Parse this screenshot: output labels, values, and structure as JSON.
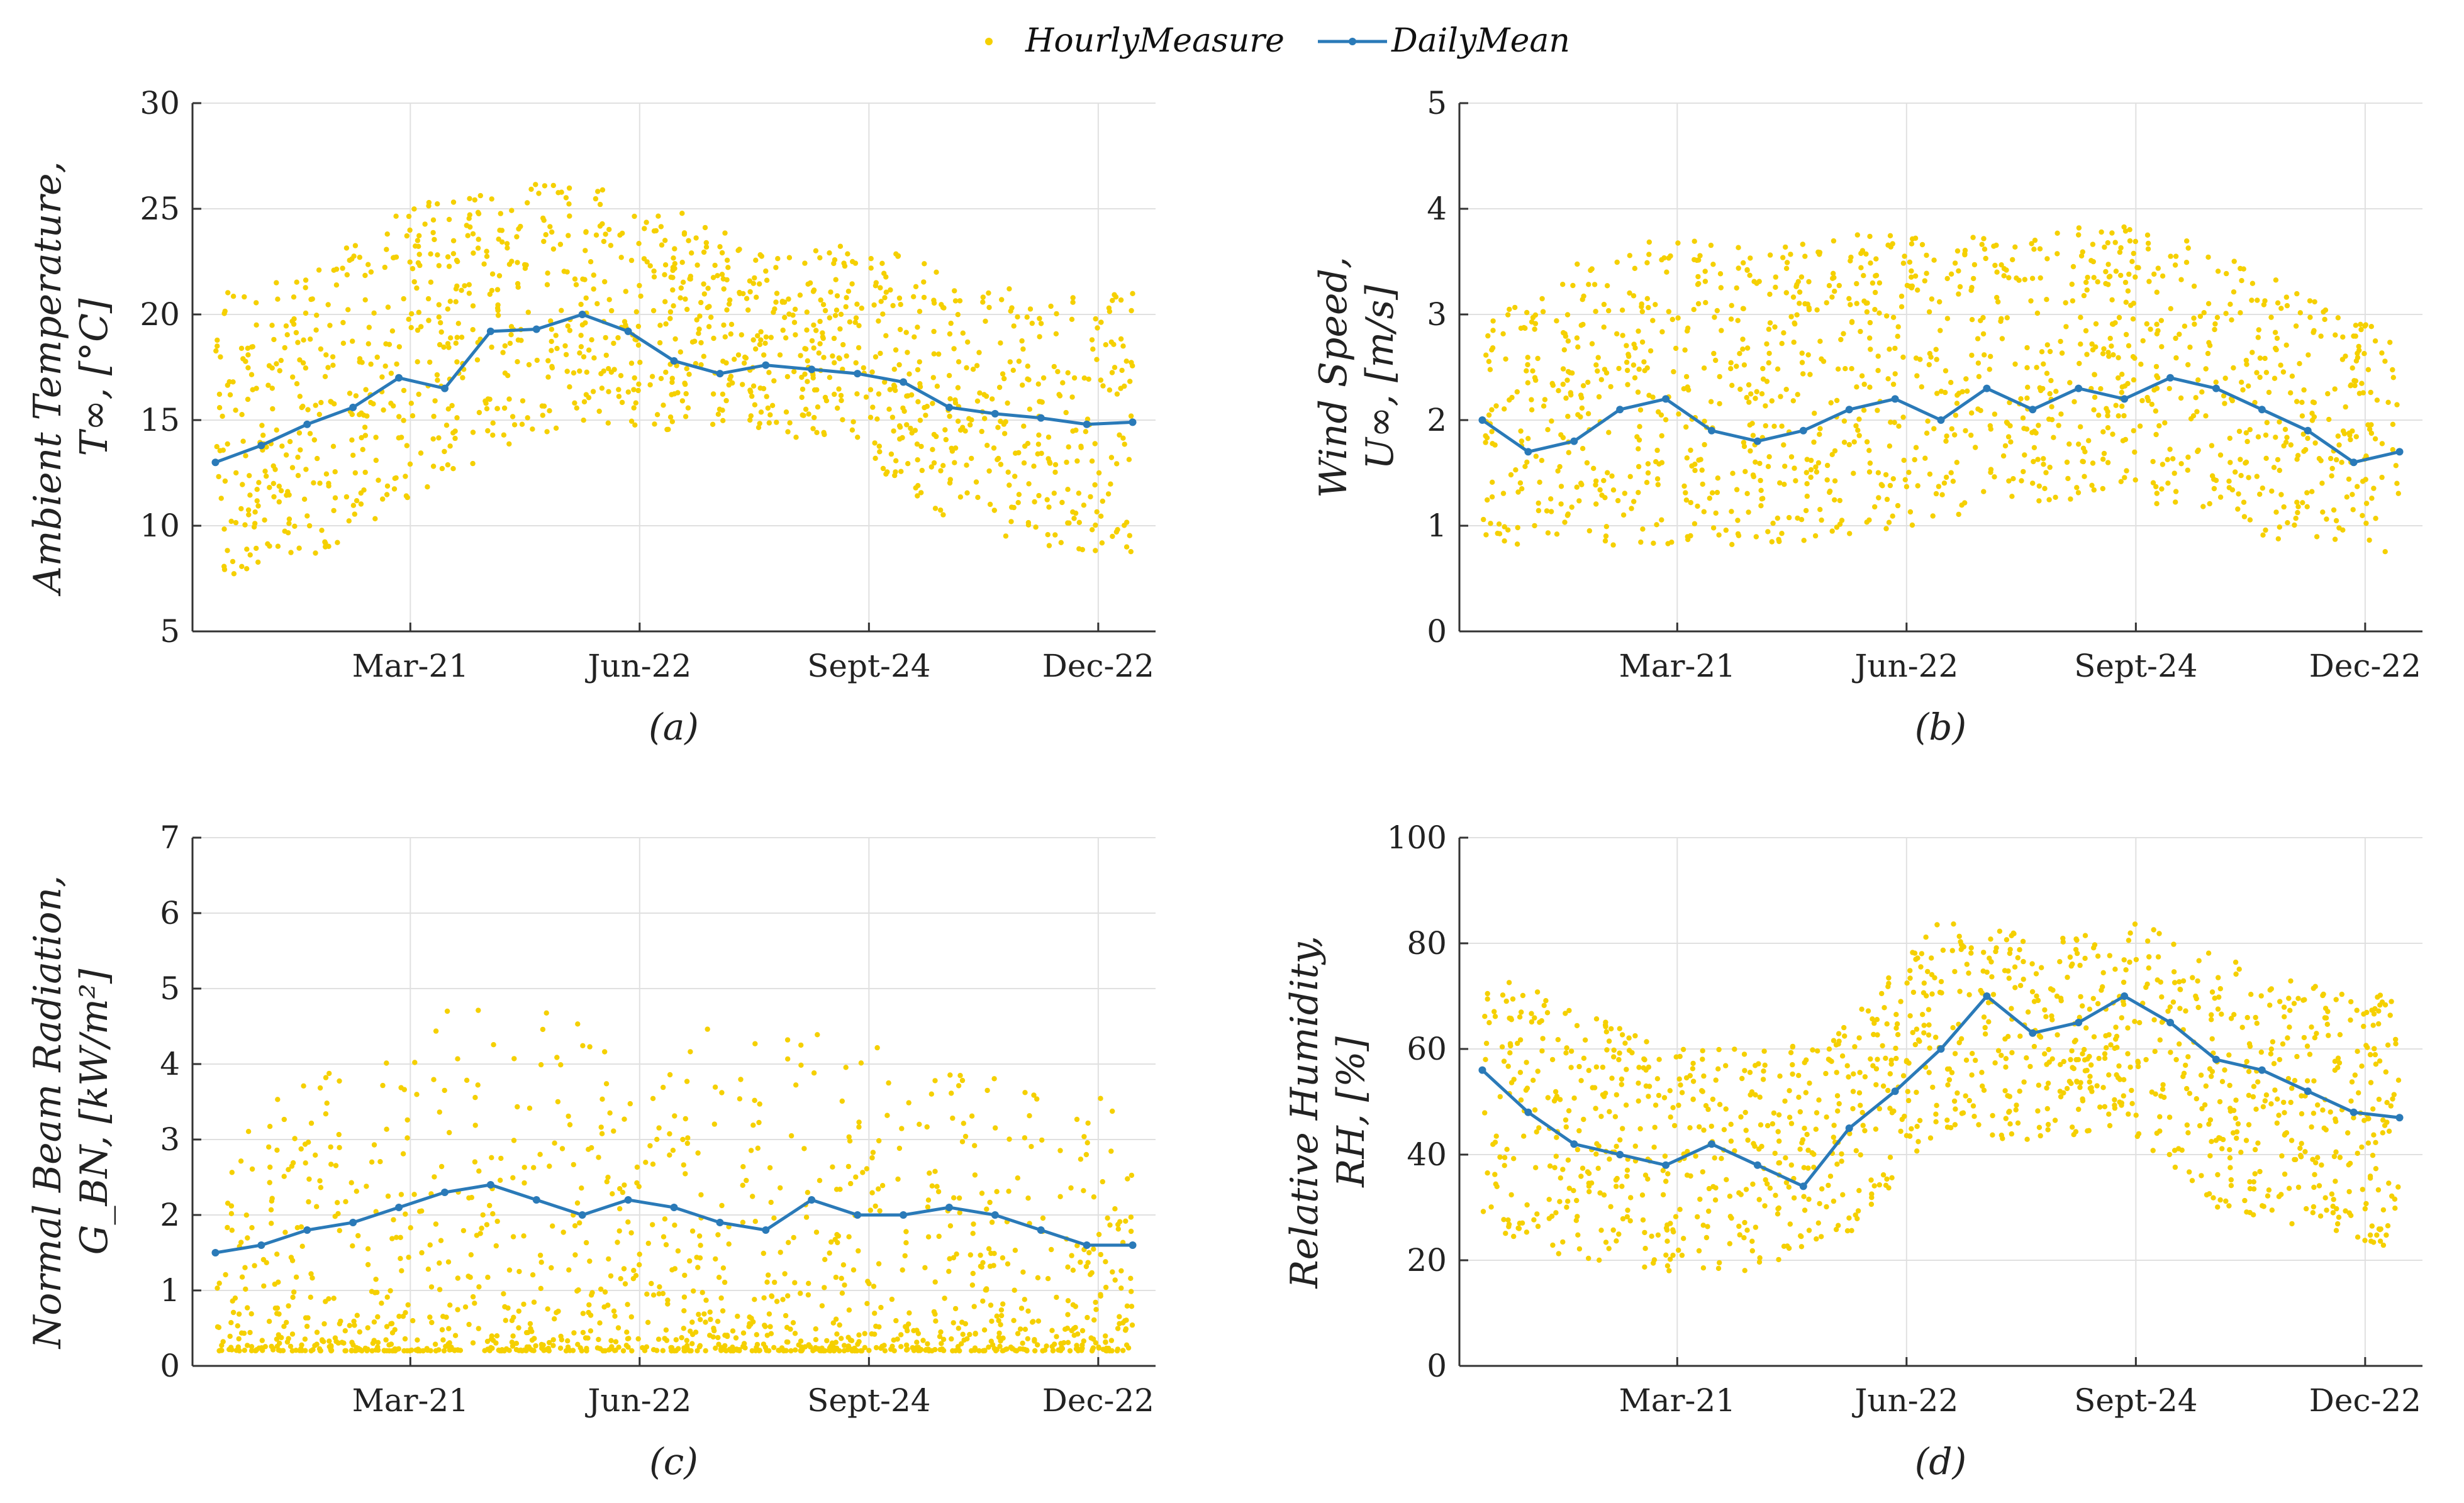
{
  "legend": {
    "hourly_label": "HourlyMeasure",
    "daily_label": "DailyMean"
  },
  "colors": {
    "hourly": "#f5d000",
    "daily": "#2a7ab8",
    "grid": "#e0e0e0",
    "axis": "#333333"
  },
  "chart_data": [
    {
      "type": "scatter",
      "panel": "(a)",
      "ylabel_line1": "Ambient Temperature,",
      "ylabel_line2": "T∞, [°C]",
      "ylim": [
        5,
        30
      ],
      "yticks": [
        "5",
        "10",
        "15",
        "20",
        "25",
        "30"
      ],
      "xticks": [
        "Mar-21",
        "Jun-22",
        "Sept-24",
        "Dec-22"
      ],
      "xtick_pos_days": [
        85,
        185,
        285,
        385
      ],
      "xlim_days": [
        -10,
        410
      ],
      "daily_mean": {
        "day": [
          0,
          20,
          40,
          60,
          80,
          100,
          120,
          140,
          160,
          180,
          200,
          220,
          240,
          260,
          280,
          300,
          320,
          340,
          360,
          380,
          400
        ],
        "values": [
          13,
          13.8,
          14.8,
          15.6,
          17,
          16.5,
          19.2,
          19.3,
          20,
          19.2,
          17.8,
          17.2,
          17.6,
          17.4,
          17.2,
          16.8,
          15.6,
          15.3,
          15.1,
          14.8,
          14.9
        ]
      },
      "hourly_band": {
        "day": [
          0,
          40,
          80,
          120,
          160,
          200,
          240,
          280,
          320,
          360,
          400
        ],
        "low": [
          7.5,
          8.5,
          10.5,
          13.5,
          15,
          14.5,
          14.5,
          13.5,
          10,
          9,
          8.5
        ],
        "high": [
          21,
          22,
          25,
          26,
          26.5,
          25,
          23,
          23.5,
          22,
          21,
          21
        ]
      }
    },
    {
      "type": "scatter",
      "panel": "(b)",
      "ylabel_line1": "Wind Speed,",
      "ylabel_line2": "U∞, [m/s]",
      "ylim": [
        0,
        5
      ],
      "yticks": [
        "0",
        "1",
        "2",
        "3",
        "4",
        "5"
      ],
      "xticks": [
        "Mar-21",
        "Jun-22",
        "Sept-24",
        "Dec-22"
      ],
      "xtick_pos_days": [
        85,
        185,
        285,
        385
      ],
      "xlim_days": [
        -10,
        410
      ],
      "daily_mean": {
        "day": [
          0,
          20,
          40,
          60,
          80,
          100,
          120,
          140,
          160,
          180,
          200,
          220,
          240,
          260,
          280,
          300,
          320,
          340,
          360,
          380,
          400
        ],
        "values": [
          2,
          1.7,
          1.8,
          2.1,
          2.2,
          1.9,
          1.8,
          1.9,
          2.1,
          2.2,
          2,
          2.3,
          2.1,
          2.3,
          2.2,
          2.4,
          2.3,
          2.1,
          1.9,
          1.6,
          1.7
        ]
      },
      "hourly_band": {
        "day": [
          0,
          40,
          80,
          120,
          160,
          200,
          240,
          280,
          320,
          360,
          400
        ],
        "low": [
          0.8,
          0.8,
          0.8,
          0.8,
          0.9,
          1,
          1.2,
          1.3,
          1,
          0.8,
          0.7
        ],
        "high": [
          3,
          3.5,
          3.8,
          3.6,
          3.8,
          3.7,
          3.8,
          3.9,
          3.6,
          3.2,
          2.8
        ]
      }
    },
    {
      "type": "scatter",
      "panel": "(c)",
      "ylabel_line1": "Normal Beam Radiation,",
      "ylabel_line2": "G_BN, [kW/m²]",
      "ylim": [
        0,
        7
      ],
      "yticks": [
        "0",
        "1",
        "2",
        "3",
        "4",
        "5",
        "6",
        "7"
      ],
      "xticks": [
        "Mar-21",
        "Jun-22",
        "Sept-24",
        "Dec-22"
      ],
      "xtick_pos_days": [
        85,
        185,
        285,
        385
      ],
      "xlim_days": [
        -10,
        410
      ],
      "daily_mean": {
        "day": [
          0,
          20,
          40,
          60,
          80,
          100,
          120,
          140,
          160,
          180,
          200,
          220,
          240,
          260,
          280,
          300,
          320,
          340,
          360,
          380,
          400
        ],
        "values": [
          1.5,
          1.6,
          1.8,
          1.9,
          2.1,
          2.3,
          2.4,
          2.2,
          2,
          2.2,
          2.1,
          1.9,
          1.8,
          2.2,
          2,
          2,
          2.1,
          2,
          1.8,
          1.6,
          1.6
        ]
      },
      "hourly_band": {
        "day": [
          0,
          40,
          80,
          120,
          160,
          200,
          240,
          280,
          320,
          360,
          400
        ],
        "low": [
          0.2,
          0.2,
          0.2,
          0.2,
          0.2,
          0.2,
          0.2,
          0.2,
          0.2,
          0.2,
          0.2
        ],
        "high": [
          3,
          3.8,
          4.6,
          4.9,
          4.7,
          4.5,
          4.6,
          4.3,
          4,
          3.7,
          3.5
        ]
      }
    },
    {
      "type": "scatter",
      "panel": "(d)",
      "ylabel_line1": "Relative Humidity,",
      "ylabel_line2": "RH, [%]",
      "ylim": [
        0,
        100
      ],
      "yticks": [
        "0",
        "20",
        "40",
        "60",
        "80",
        "100"
      ],
      "xticks": [
        "Mar-21",
        "Jun-22",
        "Sept-24",
        "Dec-22"
      ],
      "xtick_pos_days": [
        85,
        185,
        285,
        385
      ],
      "xlim_days": [
        -10,
        410
      ],
      "daily_mean": {
        "day": [
          0,
          20,
          40,
          60,
          80,
          100,
          120,
          140,
          160,
          180,
          200,
          220,
          240,
          260,
          280,
          300,
          320,
          340,
          360,
          380,
          400
        ],
        "values": [
          56,
          48,
          42,
          40,
          38,
          42,
          38,
          34,
          45,
          52,
          60,
          70,
          63,
          65,
          70,
          65,
          58,
          56,
          52,
          48,
          47
        ]
      },
      "hourly_band": {
        "day": [
          0,
          40,
          80,
          120,
          160,
          200,
          240,
          280,
          320,
          360,
          400
        ],
        "low": [
          25,
          20,
          18,
          18,
          25,
          45,
          42,
          45,
          30,
          25,
          22
        ],
        "high": [
          75,
          68,
          60,
          60,
          65,
          85,
          82,
          85,
          78,
          72,
          70
        ]
      }
    }
  ]
}
